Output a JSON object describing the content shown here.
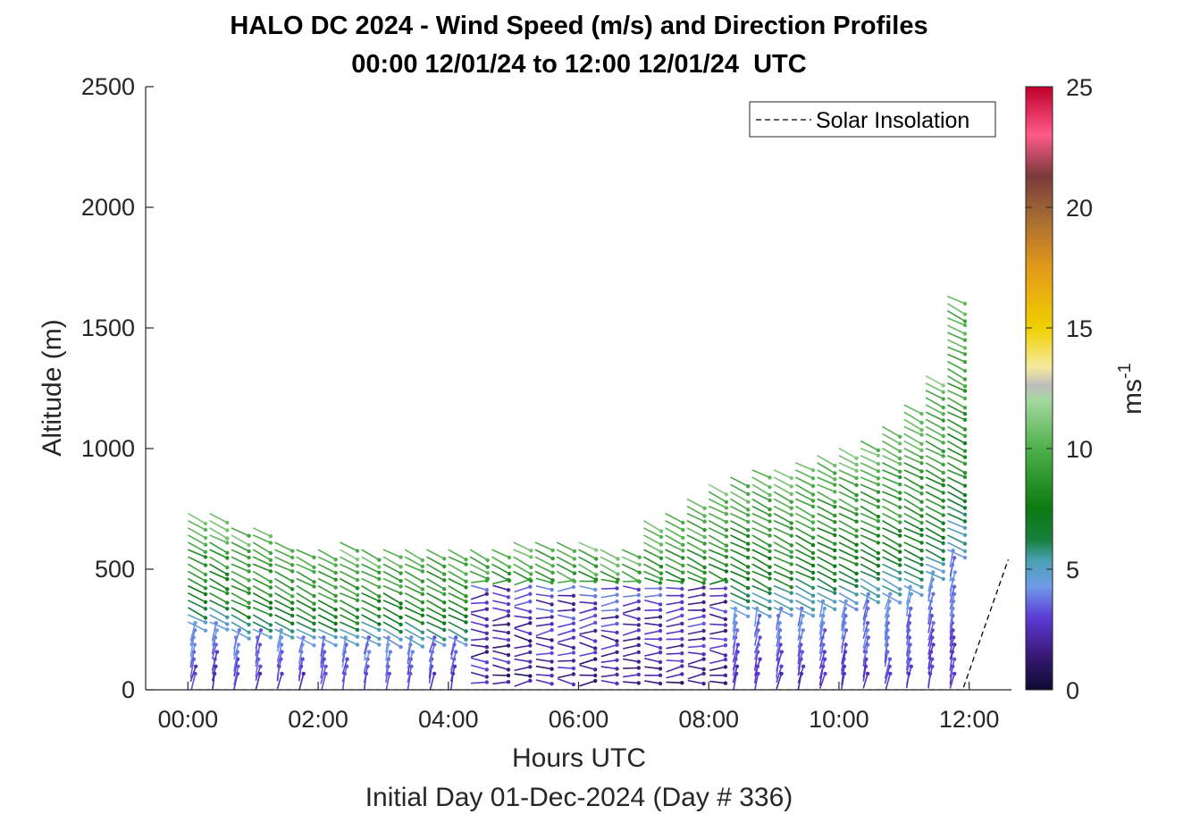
{
  "chart_data": {
    "type": "scatter",
    "title": "HALO DC 2024 - Wind Speed (m/s) and Direction Profiles",
    "subtitle": "00:00 12/01/24 to 12:00 12/01/24  UTC",
    "xlabel": "Hours UTC",
    "ylabel": "Altitude (m)",
    "footer": "Initial Day 01-Dec-2024 (Day # 336)",
    "x_ticks": [
      "00:00",
      "02:00",
      "04:00",
      "06:00",
      "08:00",
      "10:00",
      "12:00"
    ],
    "y_ticks": [
      "0",
      "500",
      "1000",
      "1500",
      "2000",
      "2500"
    ],
    "xlim_hours": [
      -0.65,
      12.65
    ],
    "ylim": [
      0,
      2500
    ],
    "legend": [
      {
        "label": "Solar Insolation",
        "style": "dashed",
        "color": "#000000"
      }
    ],
    "colorbar": {
      "label": "ms",
      "label_superscript": "-1",
      "ticks": [
        "0",
        "5",
        "10",
        "15",
        "20",
        "25"
      ],
      "range": [
        0,
        25
      ],
      "stops": [
        {
          "v": 0,
          "c": "#0d0b33"
        },
        {
          "v": 1.5,
          "c": "#3a1a7a"
        },
        {
          "v": 3,
          "c": "#5c3bd6"
        },
        {
          "v": 4.3,
          "c": "#6f9ce8"
        },
        {
          "v": 5.4,
          "c": "#4aa0b0"
        },
        {
          "v": 6.2,
          "c": "#178040"
        },
        {
          "v": 7.5,
          "c": "#0b7a10"
        },
        {
          "v": 10,
          "c": "#4fb04a"
        },
        {
          "v": 12,
          "c": "#a5d8a0"
        },
        {
          "v": 12.6,
          "c": "#bdbdbd"
        },
        {
          "v": 13.4,
          "c": "#f5ea9c"
        },
        {
          "v": 15,
          "c": "#f0d000"
        },
        {
          "v": 17.5,
          "c": "#e39a1a"
        },
        {
          "v": 20,
          "c": "#9a6038"
        },
        {
          "v": 21.3,
          "c": "#7a3a3a"
        },
        {
          "v": 23,
          "c": "#ff5a8a"
        },
        {
          "v": 25,
          "c": "#c0002a"
        }
      ]
    },
    "solar_insolation": {
      "x_hours": [
        0,
        11.9,
        12.6
      ],
      "y": [
        0,
        0,
        540
      ]
    },
    "profiles": {
      "times_hours": [
        0,
        0.3333,
        0.6667,
        1.0,
        1.3333,
        1.6667,
        2.0,
        2.3333,
        2.6667,
        3.0,
        3.3333,
        3.6667,
        4.0,
        4.3333,
        4.6667,
        5.0,
        5.3333,
        5.6667,
        6.0,
        6.3333,
        6.6667,
        7.0,
        7.3333,
        7.6667,
        8.0,
        8.3333,
        8.6667,
        9.0,
        9.3333,
        9.6667,
        10.0,
        10.3333,
        10.6667,
        11.0,
        11.3333,
        11.6667
      ],
      "top_altitude_m": [
        730,
        730,
        660,
        660,
        620,
        590,
        590,
        600,
        590,
        590,
        590,
        590,
        590,
        590,
        590,
        610,
        620,
        620,
        610,
        580,
        580,
        700,
        720,
        780,
        850,
        880,
        900,
        900,
        940,
        960,
        1000,
        1040,
        1080,
        1180,
        1300,
        1620
      ],
      "range_gate_m": 30,
      "profile_width_hours": 0.27
    }
  }
}
